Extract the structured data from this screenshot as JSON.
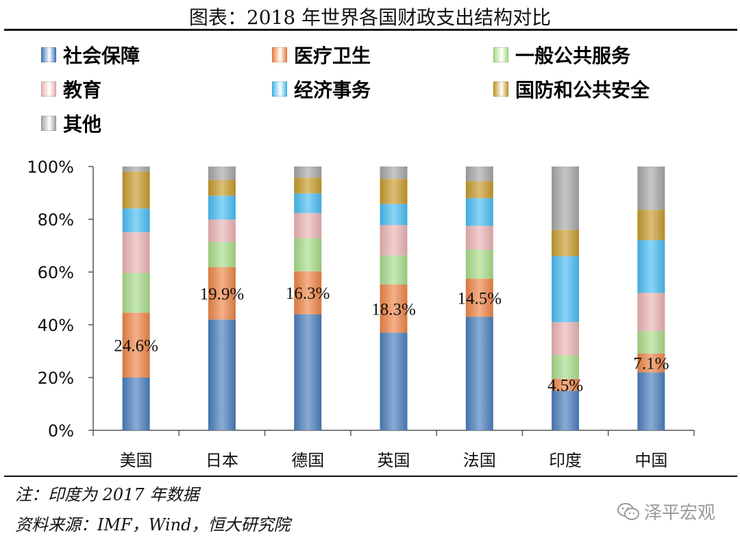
{
  "title": "图表：2018 年世界各国财政支出结构对比",
  "notes": {
    "line1": "注：印度为 2017 年数据",
    "line2": "资料来源：IMF，Wind，恒大研究院"
  },
  "watermark": {
    "text": "泽平宏观",
    "icon": "wechat-icon"
  },
  "chart_data": {
    "type": "bar",
    "stacked": true,
    "categories": [
      "美国",
      "日本",
      "德国",
      "英国",
      "法国",
      "印度",
      "中国"
    ],
    "yticks": [
      "0%",
      "20%",
      "40%",
      "60%",
      "80%",
      "100%"
    ],
    "ylim": [
      0,
      100
    ],
    "legend_position": "top",
    "series": [
      {
        "name": "社会保障",
        "color": "#4a7fbd",
        "values": [
          20,
          42,
          44,
          37,
          43,
          15,
          22
        ]
      },
      {
        "name": "医疗卫生",
        "color": "#ee8548",
        "values": [
          24.6,
          19.9,
          16.3,
          18.3,
          14.5,
          4.5,
          7.1
        ]
      },
      {
        "name": "一般公共服务",
        "color": "#a9dc8a",
        "values": [
          15,
          9.5,
          12.5,
          11,
          11,
          9,
          8.5
        ]
      },
      {
        "name": "教育",
        "color": "#ebb3b3",
        "values": [
          15.5,
          8.5,
          9.5,
          11.5,
          9,
          12.5,
          14.5
        ]
      },
      {
        "name": "经济事务",
        "color": "#49bdf2",
        "values": [
          9,
          9,
          7.5,
          8,
          10.5,
          25,
          20
        ]
      },
      {
        "name": "国防和公共安全",
        "color": "#c79b2c",
        "values": [
          14,
          6,
          6,
          9.5,
          6.5,
          10,
          11.5
        ]
      },
      {
        "name": "其他",
        "color": "#a7a7a7",
        "values": [
          1.9,
          5.1,
          4.2,
          4.7,
          5.5,
          24,
          16.4
        ]
      }
    ],
    "data_labels": [
      {
        "category": "美国",
        "series": "医疗卫生",
        "text": "24.6%"
      },
      {
        "category": "日本",
        "series": "医疗卫生",
        "text": "19.9%"
      },
      {
        "category": "德国",
        "series": "医疗卫生",
        "text": "16.3%"
      },
      {
        "category": "英国",
        "series": "医疗卫生",
        "text": "18.3%"
      },
      {
        "category": "法国",
        "series": "医疗卫生",
        "text": "14.5%"
      },
      {
        "category": "印度",
        "series": "医疗卫生",
        "text": "4.5%"
      },
      {
        "category": "中国",
        "series": "医疗卫生",
        "text": "7.1%"
      }
    ]
  }
}
